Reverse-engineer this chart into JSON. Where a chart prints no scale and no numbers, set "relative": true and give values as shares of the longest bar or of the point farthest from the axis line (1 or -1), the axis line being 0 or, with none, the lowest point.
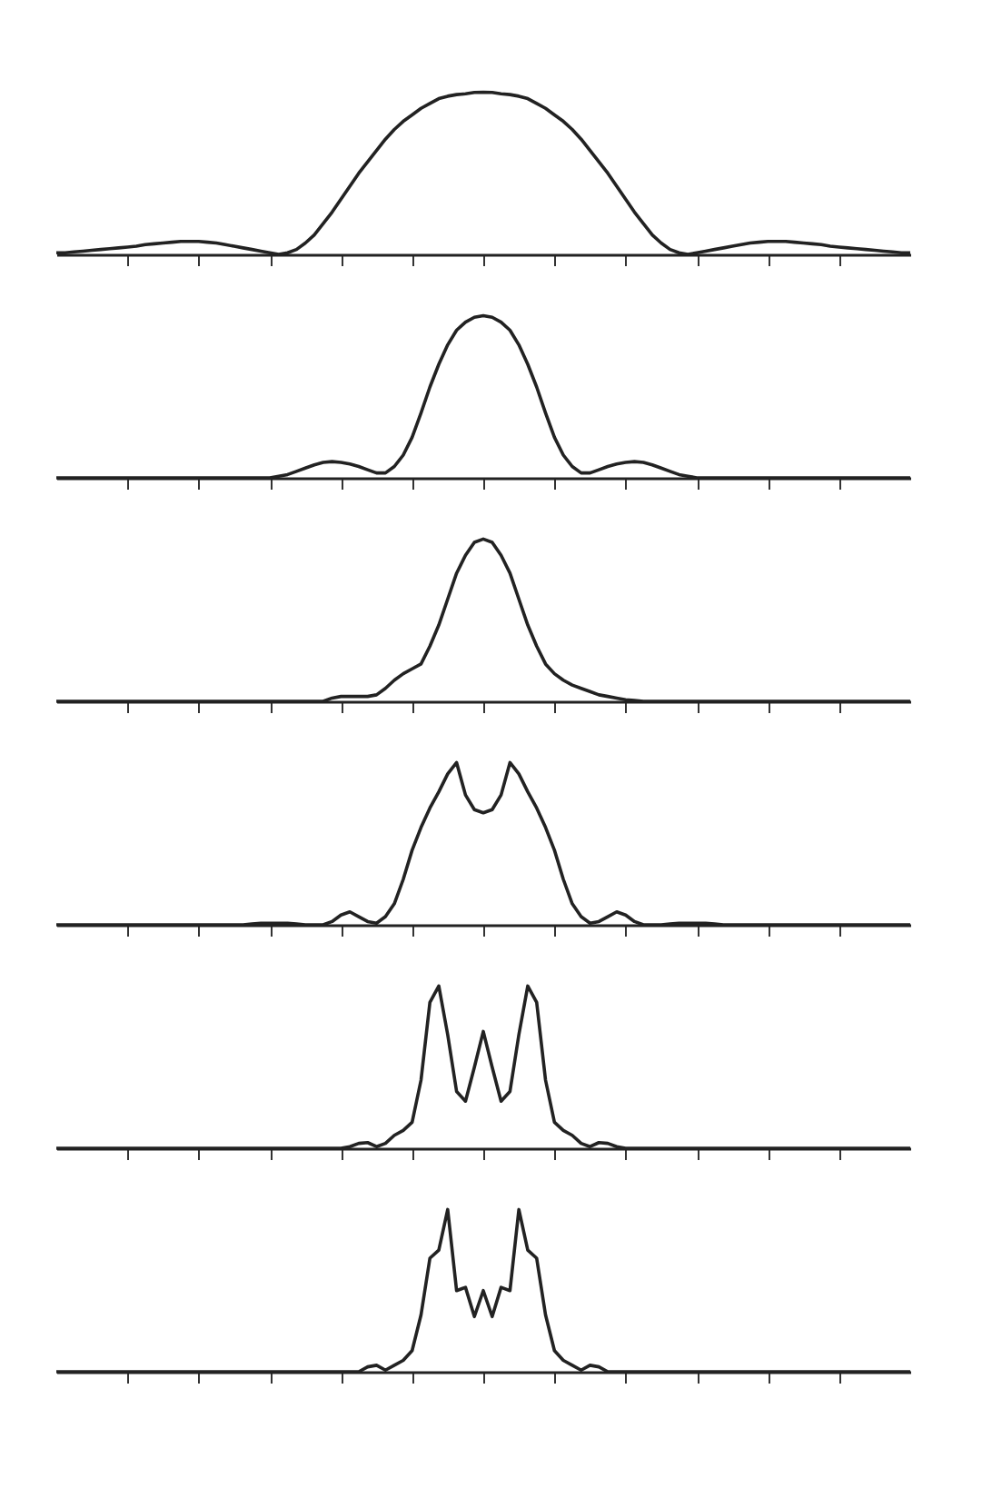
{
  "chart_data": [
    {
      "type": "line",
      "relative": true,
      "color": "#222222",
      "tick_labels": false,
      "grid": false,
      "categories": [
        null,
        null,
        null,
        null,
        null,
        null,
        null,
        null,
        null,
        null,
        null,
        null,
        null,
        null,
        null,
        null,
        null,
        null,
        null,
        null,
        null,
        null,
        null,
        null,
        null,
        null,
        null,
        null,
        null,
        null,
        null,
        null,
        null,
        null,
        null,
        null,
        null,
        null,
        null,
        null,
        null,
        null,
        null,
        null,
        null,
        null,
        null,
        null,
        null,
        null,
        null,
        null,
        null,
        null,
        null,
        null,
        null,
        null,
        null,
        null,
        null,
        null,
        null,
        null,
        null,
        null,
        null,
        null,
        null,
        null,
        null,
        null,
        null,
        null,
        null,
        null,
        null,
        null,
        null,
        null,
        null,
        null,
        null,
        null,
        null,
        null,
        null,
        null,
        null,
        null,
        null,
        null,
        null,
        null,
        null,
        null,
        null
      ],
      "values": [
        0.01,
        0.01,
        0.015,
        0.02,
        0.025,
        0.03,
        0.035,
        0.04,
        0.045,
        0.05,
        0.06,
        0.065,
        0.07,
        0.075,
        0.08,
        0.08,
        0.08,
        0.075,
        0.07,
        0.06,
        0.05,
        0.04,
        0.03,
        0.02,
        0.01,
        0,
        0.01,
        0.03,
        0.07,
        0.12,
        0.19,
        0.26,
        0.34,
        0.42,
        0.5,
        0.57,
        0.64,
        0.71,
        0.77,
        0.82,
        0.86,
        0.9,
        0.93,
        0.96,
        0.975,
        0.985,
        0.99,
        0.998,
        1,
        0.998,
        0.99,
        0.985,
        0.975,
        0.96,
        0.93,
        0.9,
        0.86,
        0.82,
        0.77,
        0.71,
        0.64,
        0.57,
        0.5,
        0.42,
        0.34,
        0.26,
        0.19,
        0.12,
        0.07,
        0.03,
        0.01,
        0,
        0.01,
        0.02,
        0.03,
        0.04,
        0.05,
        0.06,
        0.07,
        0.075,
        0.08,
        0.08,
        0.08,
        0.075,
        0.07,
        0.065,
        0.06,
        0.05,
        0.045,
        0.04,
        0.035,
        0.03,
        0.025,
        0.02,
        0.015,
        0.01,
        0.01
      ]
    },
    {
      "type": "line",
      "relative": true,
      "color": "#222222",
      "tick_labels": false,
      "grid": false,
      "categories": [
        null,
        null,
        null,
        null,
        null,
        null,
        null,
        null,
        null,
        null,
        null,
        null,
        null,
        null,
        null,
        null,
        null,
        null,
        null,
        null,
        null,
        null,
        null,
        null,
        null,
        null,
        null,
        null,
        null,
        null,
        null,
        null,
        null,
        null,
        null,
        null,
        null,
        null,
        null,
        null,
        null,
        null,
        null,
        null,
        null,
        null,
        null,
        null,
        null,
        null,
        null,
        null,
        null,
        null,
        null,
        null,
        null,
        null,
        null,
        null,
        null,
        null,
        null,
        null,
        null,
        null,
        null,
        null,
        null,
        null,
        null,
        null,
        null,
        null,
        null,
        null,
        null,
        null,
        null,
        null,
        null,
        null,
        null,
        null,
        null,
        null,
        null,
        null,
        null,
        null,
        null,
        null,
        null,
        null,
        null,
        null,
        null
      ],
      "values": [
        0,
        0,
        0,
        0,
        0,
        0,
        0,
        0,
        0,
        0,
        0,
        0,
        0,
        0,
        0,
        0,
        0,
        0,
        0,
        0,
        0,
        0,
        0,
        0,
        0,
        0.01,
        0.02,
        0.04,
        0.06,
        0.08,
        0.095,
        0.1,
        0.095,
        0.085,
        0.07,
        0.05,
        0.03,
        0.03,
        0.07,
        0.14,
        0.25,
        0.4,
        0.56,
        0.7,
        0.82,
        0.91,
        0.96,
        0.99,
        1,
        0.99,
        0.96,
        0.91,
        0.82,
        0.7,
        0.56,
        0.4,
        0.25,
        0.14,
        0.07,
        0.03,
        0.03,
        0.05,
        0.07,
        0.085,
        0.095,
        0.1,
        0.095,
        0.08,
        0.06,
        0.04,
        0.02,
        0.01,
        0,
        0,
        0,
        0,
        0,
        0,
        0,
        0,
        0,
        0,
        0,
        0,
        0,
        0,
        0,
        0,
        0,
        0,
        0,
        0,
        0,
        0,
        0,
        0,
        0
      ]
    },
    {
      "type": "line",
      "relative": true,
      "color": "#222222",
      "tick_labels": false,
      "grid": false,
      "categories": [
        null,
        null,
        null,
        null,
        null,
        null,
        null,
        null,
        null,
        null,
        null,
        null,
        null,
        null,
        null,
        null,
        null,
        null,
        null,
        null,
        null,
        null,
        null,
        null,
        null,
        null,
        null,
        null,
        null,
        null,
        null,
        null,
        null,
        null,
        null,
        null,
        null,
        null,
        null,
        null,
        null,
        null,
        null,
        null,
        null,
        null,
        null,
        null,
        null,
        null,
        null,
        null,
        null,
        null,
        null,
        null,
        null,
        null,
        null,
        null,
        null,
        null,
        null,
        null,
        null,
        null,
        null,
        null,
        null,
        null,
        null,
        null,
        null,
        null,
        null,
        null,
        null,
        null,
        null,
        null,
        null,
        null,
        null,
        null,
        null,
        null,
        null,
        null,
        null,
        null,
        null,
        null,
        null,
        null,
        null,
        null,
        null
      ],
      "values": [
        0,
        0,
        0,
        0,
        0,
        0,
        0,
        0,
        0,
        0,
        0,
        0,
        0,
        0,
        0,
        0,
        0,
        0,
        0,
        0,
        0,
        0,
        0,
        0,
        0,
        0,
        0,
        0,
        0,
        0,
        0,
        0.02,
        0.03,
        0.03,
        0.03,
        0.03,
        0.04,
        0.08,
        0.13,
        0.17,
        0.2,
        0.23,
        0.34,
        0.47,
        0.63,
        0.79,
        0.9,
        0.98,
        1,
        0.98,
        0.9,
        0.79,
        0.63,
        0.47,
        0.34,
        0.23,
        0.17,
        0.13,
        0.1,
        0.08,
        0.06,
        0.04,
        0.03,
        0.02,
        0.01,
        0.005,
        0,
        0,
        0,
        0,
        0,
        0,
        0,
        0,
        0,
        0,
        0,
        0,
        0,
        0,
        0,
        0,
        0,
        0,
        0,
        0,
        0,
        0,
        0,
        0,
        0,
        0,
        0,
        0,
        0,
        0,
        0
      ]
    },
    {
      "type": "line",
      "relative": true,
      "color": "#222222",
      "tick_labels": false,
      "grid": false,
      "categories": [
        null,
        null,
        null,
        null,
        null,
        null,
        null,
        null,
        null,
        null,
        null,
        null,
        null,
        null,
        null,
        null,
        null,
        null,
        null,
        null,
        null,
        null,
        null,
        null,
        null,
        null,
        null,
        null,
        null,
        null,
        null,
        null,
        null,
        null,
        null,
        null,
        null,
        null,
        null,
        null,
        null,
        null,
        null,
        null,
        null,
        null,
        null,
        null,
        null,
        null,
        null,
        null,
        null,
        null,
        null,
        null,
        null,
        null,
        null,
        null,
        null,
        null,
        null,
        null,
        null,
        null,
        null,
        null,
        null,
        null,
        null,
        null,
        null,
        null,
        null,
        null,
        null,
        null,
        null,
        null,
        null,
        null,
        null,
        null,
        null,
        null,
        null,
        null,
        null,
        null,
        null,
        null,
        null,
        null,
        null,
        null,
        null
      ],
      "values": [
        0,
        0,
        0,
        0,
        0,
        0,
        0,
        0,
        0,
        0,
        0,
        0,
        0,
        0,
        0,
        0,
        0,
        0,
        0,
        0,
        0,
        0,
        0.005,
        0.01,
        0.01,
        0.01,
        0.01,
        0.005,
        0,
        0,
        0,
        0.02,
        0.06,
        0.08,
        0.05,
        0.02,
        0.01,
        0.05,
        0.13,
        0.28,
        0.46,
        0.6,
        0.72,
        0.82,
        0.93,
        1,
        0.8,
        0.71,
        0.69,
        0.71,
        0.8,
        1,
        0.93,
        0.82,
        0.72,
        0.6,
        0.46,
        0.28,
        0.13,
        0.05,
        0.01,
        0.02,
        0.05,
        0.08,
        0.06,
        0.02,
        0,
        0,
        0,
        0.005,
        0.01,
        0.01,
        0.01,
        0.01,
        0.005,
        0,
        0,
        0,
        0,
        0,
        0,
        0,
        0,
        0,
        0,
        0,
        0,
        0,
        0,
        0,
        0,
        0,
        0,
        0,
        0,
        0,
        0
      ]
    },
    {
      "type": "line",
      "relative": true,
      "color": "#222222",
      "tick_labels": false,
      "grid": false,
      "categories": [
        null,
        null,
        null,
        null,
        null,
        null,
        null,
        null,
        null,
        null,
        null,
        null,
        null,
        null,
        null,
        null,
        null,
        null,
        null,
        null,
        null,
        null,
        null,
        null,
        null,
        null,
        null,
        null,
        null,
        null,
        null,
        null,
        null,
        null,
        null,
        null,
        null,
        null,
        null,
        null,
        null,
        null,
        null,
        null,
        null,
        null,
        null,
        null,
        null,
        null,
        null,
        null,
        null,
        null,
        null,
        null,
        null,
        null,
        null,
        null,
        null,
        null,
        null,
        null,
        null,
        null,
        null,
        null,
        null,
        null,
        null,
        null,
        null,
        null,
        null,
        null,
        null,
        null,
        null,
        null,
        null,
        null,
        null,
        null,
        null,
        null,
        null,
        null,
        null,
        null,
        null,
        null,
        null,
        null,
        null,
        null,
        null
      ],
      "values": [
        0,
        0,
        0,
        0,
        0,
        0,
        0,
        0,
        0,
        0,
        0,
        0,
        0,
        0,
        0,
        0,
        0,
        0,
        0,
        0,
        0,
        0,
        0,
        0,
        0,
        0,
        0,
        0,
        0,
        0,
        0,
        0,
        0,
        0.01,
        0.03,
        0.035,
        0.01,
        0.03,
        0.08,
        0.11,
        0.16,
        0.42,
        0.9,
        1,
        0.7,
        0.35,
        0.29,
        0.5,
        0.72,
        0.5,
        0.29,
        0.35,
        0.7,
        1,
        0.9,
        0.42,
        0.16,
        0.11,
        0.08,
        0.03,
        0.01,
        0.035,
        0.03,
        0.01,
        0,
        0,
        0,
        0,
        0,
        0,
        0,
        0,
        0,
        0,
        0,
        0,
        0,
        0,
        0,
        0,
        0,
        0,
        0,
        0,
        0,
        0,
        0,
        0,
        0,
        0,
        0,
        0,
        0,
        0,
        0,
        0,
        0
      ]
    },
    {
      "type": "line",
      "relative": true,
      "color": "#222222",
      "tick_labels": false,
      "grid": false,
      "categories": [
        null,
        null,
        null,
        null,
        null,
        null,
        null,
        null,
        null,
        null,
        null,
        null,
        null,
        null,
        null,
        null,
        null,
        null,
        null,
        null,
        null,
        null,
        null,
        null,
        null,
        null,
        null,
        null,
        null,
        null,
        null,
        null,
        null,
        null,
        null,
        null,
        null,
        null,
        null,
        null,
        null,
        null,
        null,
        null,
        null,
        null,
        null,
        null,
        null,
        null,
        null,
        null,
        null,
        null,
        null,
        null,
        null,
        null,
        null,
        null,
        null,
        null,
        null,
        null,
        null,
        null,
        null,
        null,
        null,
        null,
        null,
        null,
        null,
        null,
        null,
        null,
        null,
        null,
        null,
        null,
        null,
        null,
        null,
        null,
        null,
        null,
        null,
        null,
        null,
        null,
        null,
        null,
        null,
        null,
        null,
        null,
        null
      ],
      "values": [
        0,
        0,
        0,
        0,
        0,
        0,
        0,
        0,
        0,
        0,
        0,
        0,
        0,
        0,
        0,
        0,
        0,
        0,
        0,
        0,
        0,
        0,
        0,
        0,
        0,
        0,
        0,
        0,
        0,
        0,
        0,
        0,
        0,
        0,
        0,
        0.03,
        0.04,
        0.01,
        0.04,
        0.07,
        0.13,
        0.35,
        0.7,
        0.75,
        1,
        0.5,
        0.52,
        0.34,
        0.5,
        0.34,
        0.52,
        0.5,
        1,
        0.75,
        0.7,
        0.35,
        0.13,
        0.07,
        0.04,
        0.01,
        0.04,
        0.03,
        0,
        0,
        0,
        0,
        0,
        0,
        0,
        0,
        0,
        0,
        0,
        0,
        0,
        0,
        0,
        0,
        0,
        0,
        0,
        0,
        0,
        0,
        0,
        0,
        0,
        0,
        0,
        0,
        0,
        0,
        0,
        0,
        0,
        0,
        0
      ]
    }
  ]
}
